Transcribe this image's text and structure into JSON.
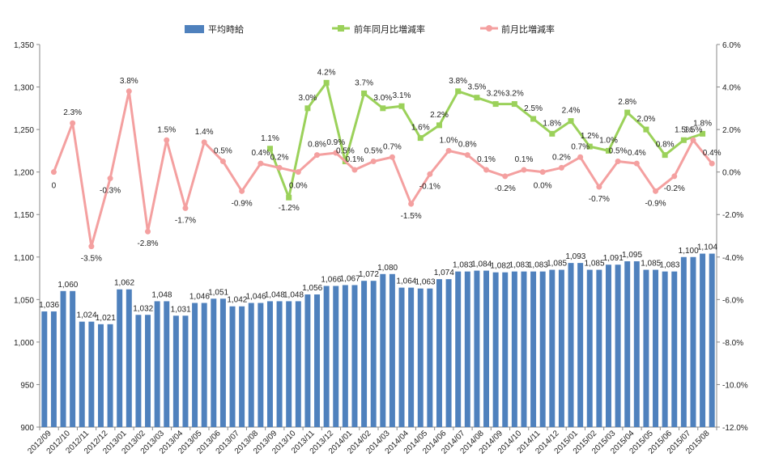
{
  "chart_data": {
    "type": "bar",
    "categories": [
      "2012/09",
      "2012/10",
      "2012/11",
      "2012/12",
      "2013/01",
      "2013/02",
      "2013/03",
      "2013/04",
      "2013/05",
      "2013/06",
      "2013/07",
      "2013/08",
      "2013/09",
      "2013/10",
      "2013/11",
      "2013/12",
      "2014/01",
      "2014/02",
      "2014/03",
      "2014/04",
      "2014/05",
      "2014/06",
      "2014/07",
      "2014/08",
      "2014/09",
      "2014/10",
      "2014/11",
      "2014/12",
      "2015/01",
      "2015/02",
      "2015/03",
      "2015/04",
      "2015/05",
      "2015/06",
      "2015/07",
      "2015/08"
    ],
    "x": [
      "2012/09",
      "2012/09",
      "2012/10",
      "2012/10",
      "2012/11",
      "2012/11",
      "2012/12",
      "2012/12",
      "2013/01",
      "2013/01",
      "2013/02",
      "2013/02",
      "2013/03",
      "2013/03",
      "2013/04",
      "2013/04",
      "2013/05",
      "2013/05",
      "2013/06",
      "2013/06",
      "2013/07",
      "2013/07",
      "2013/08",
      "2013/08",
      "2013/09",
      "2013/09",
      "2013/10",
      "2013/10",
      "2013/11",
      "2013/11",
      "2013/12",
      "2013/12",
      "2014/01",
      "2014/01",
      "2014/02",
      "2014/02",
      "2014/03",
      "2014/03",
      "2014/04",
      "2014/04",
      "2014/05",
      "2014/05",
      "2014/06",
      "2014/06",
      "2014/07",
      "2014/07",
      "2014/08",
      "2014/08",
      "2014/09",
      "2014/09",
      "2014/10",
      "2014/10",
      "2014/11",
      "2014/11",
      "2014/12",
      "2014/12",
      "2015/01",
      "2015/01",
      "2015/02",
      "2015/02",
      "2015/03",
      "2015/03",
      "2015/04",
      "2015/04",
      "2015/05",
      "2015/05",
      "2015/06",
      "2015/06",
      "2015/07",
      "2015/07",
      "2015/08",
      "2015/08"
    ],
    "series": [
      {
        "name": "平均時給",
        "type": "bar",
        "axis": "left",
        "color": "#4f81bd",
        "values": [
          1036,
          1036,
          1060,
          1060,
          1024,
          1024,
          1021,
          1021,
          1062,
          1062,
          1032,
          1032,
          1048,
          1048,
          1031,
          1031,
          1046,
          1046,
          1051,
          1051,
          1042,
          1042,
          1046,
          1046,
          1048,
          1048,
          1048,
          1048,
          1056,
          1056,
          1066,
          1066,
          1067,
          1067,
          1072,
          1072,
          1080,
          1080,
          1064,
          1064,
          1063,
          1063,
          1074,
          1074,
          1083,
          1083,
          1084,
          1084,
          1082,
          1082,
          1083,
          1083,
          1083,
          1083,
          1085,
          1085,
          1093,
          1093,
          1085,
          1085,
          1091,
          1091,
          1095,
          1095,
          1085,
          1085,
          1083,
          1083,
          1100,
          1100,
          1104,
          1104
        ],
        "labels": [
          "1,036",
          "1,060",
          "1,024",
          "1,021",
          "1,062",
          "1,032",
          "1,048",
          "1,031",
          "1,046",
          "1,051",
          "1,042",
          "1,046",
          "1,048",
          "1,048",
          "1,056",
          "1,066",
          "1,067",
          "1,072",
          "1,080",
          "1,064",
          "1,063",
          "1,074",
          "1,083",
          "1,084",
          "1,082",
          "1,083",
          "1,083",
          "1,085",
          "1,093",
          "1,085",
          "1,091",
          "1,095",
          "1,085",
          "1,083",
          "1,100",
          "1,104"
        ]
      },
      {
        "name": "前年同月比増減率",
        "type": "line",
        "axis": "right",
        "color": "#9bd15a",
        "points": [
          {
            "i": 24,
            "v": 1.1
          },
          {
            "i": 26,
            "v": -1.2
          },
          {
            "i": 28,
            "v": 3.0
          },
          {
            "i": 30,
            "v": 4.2
          },
          {
            "i": 32,
            "v": 0.5
          },
          {
            "i": 34,
            "v": 3.7
          },
          {
            "i": 36,
            "v": 3.0
          },
          {
            "i": 38,
            "v": 3.1
          },
          {
            "i": 40,
            "v": 1.6
          },
          {
            "i": 42,
            "v": 2.2
          },
          {
            "i": 44,
            "v": 3.8
          },
          {
            "i": 46,
            "v": 3.5
          },
          {
            "i": 48,
            "v": 3.2
          },
          {
            "i": 50,
            "v": 3.2
          },
          {
            "i": 52,
            "v": 2.5
          },
          {
            "i": 54,
            "v": 1.8
          },
          {
            "i": 56,
            "v": 2.4
          },
          {
            "i": 58,
            "v": 1.2
          },
          {
            "i": 60,
            "v": 1.0
          },
          {
            "i": 62,
            "v": 2.8
          },
          {
            "i": 64,
            "v": 2.0
          },
          {
            "i": 66,
            "v": 0.8
          },
          {
            "i": 68,
            "v": 1.5
          },
          {
            "i": 70,
            "v": 1.8
          }
        ],
        "labels": [
          "1.1%",
          "-1.2%",
          "3.0%",
          "4.2%",
          "0.5%",
          "3.7%",
          "3.0%",
          "3.1%",
          "1.6%",
          "2.2%",
          "3.8%",
          "3.5%",
          "3.2%",
          "3.2%",
          "2.5%",
          "1.8%",
          "2.4%",
          "1.2%",
          "1.0%",
          "2.8%",
          "2.0%",
          "0.8%",
          "1.5%",
          "1.8%"
        ]
      },
      {
        "name": "前月比増減率",
        "type": "line",
        "axis": "right",
        "color": "#f4a0a0",
        "points": [
          {
            "i": 1,
            "v": 0.0
          },
          {
            "i": 3,
            "v": 2.3
          },
          {
            "i": 5,
            "v": -3.5
          },
          {
            "i": 7,
            "v": -0.3
          },
          {
            "i": 9,
            "v": 3.8
          },
          {
            "i": 11,
            "v": -2.8
          },
          {
            "i": 13,
            "v": 1.5
          },
          {
            "i": 15,
            "v": -1.7
          },
          {
            "i": 17,
            "v": 1.4
          },
          {
            "i": 19,
            "v": 0.5
          },
          {
            "i": 21,
            "v": -0.9
          },
          {
            "i": 23,
            "v": 0.4
          },
          {
            "i": 25,
            "v": 0.2
          },
          {
            "i": 27,
            "v": 0.0
          },
          {
            "i": 29,
            "v": 0.8
          },
          {
            "i": 31,
            "v": 0.9
          },
          {
            "i": 33,
            "v": 0.1
          },
          {
            "i": 35,
            "v": 0.5
          },
          {
            "i": 37,
            "v": 0.7
          },
          {
            "i": 39,
            "v": -1.5
          },
          {
            "i": 41,
            "v": -0.1
          },
          {
            "i": 43,
            "v": 1.0
          },
          {
            "i": 45,
            "v": 0.8
          },
          {
            "i": 47,
            "v": 0.1
          },
          {
            "i": 49,
            "v": -0.2
          },
          {
            "i": 51,
            "v": 0.1
          },
          {
            "i": 53,
            "v": 0.0
          },
          {
            "i": 55,
            "v": 0.2
          },
          {
            "i": 57,
            "v": 0.7
          },
          {
            "i": 59,
            "v": -0.7
          },
          {
            "i": 61,
            "v": 0.5
          },
          {
            "i": 63,
            "v": 0.4
          },
          {
            "i": 65,
            "v": -0.9
          },
          {
            "i": 67,
            "v": -0.2
          },
          {
            "i": 69,
            "v": 1.5
          },
          {
            "i": 71,
            "v": 0.4
          }
        ],
        "labels": [
          "0",
          "2.3%",
          "-3.5%",
          "-0.3%",
          "3.8%",
          "-2.8%",
          "1.5%",
          "-1.7%",
          "1.4%",
          "0.5%",
          "-0.9%",
          "0.4%",
          "0.2%",
          "0.0%",
          "0.8%",
          "0.9%",
          "0.1%",
          "0.5%",
          "0.7%",
          "-1.5%",
          "-0.1%",
          "1.0%",
          "0.8%",
          "0.1%",
          "-0.2%",
          "0.1%",
          "0.0%",
          "0.2%",
          "0.7%",
          "-0.7%",
          "0.5%",
          "0.4%",
          "-0.9%",
          "-0.2%",
          "1.5%",
          "0.4%"
        ]
      }
    ],
    "left_axis": {
      "ylim": [
        900,
        1350
      ],
      "ticks": [
        "900",
        "950",
        "1,000",
        "1,050",
        "1,100",
        "1,150",
        "1,200",
        "1,250",
        "1,300",
        "1,350"
      ]
    },
    "right_axis": {
      "ylim": [
        -12,
        6
      ],
      "ticks": [
        "-12.0%",
        "-10.0%",
        "-8.0%",
        "-6.0%",
        "-4.0%",
        "-2.0%",
        "0.0%",
        "2.0%",
        "4.0%",
        "6.0%"
      ]
    },
    "grid": false,
    "legend": "top"
  },
  "legend": {
    "bar": "平均時給",
    "yoy": "前年同月比増減率",
    "mom": "前月比増減率"
  }
}
